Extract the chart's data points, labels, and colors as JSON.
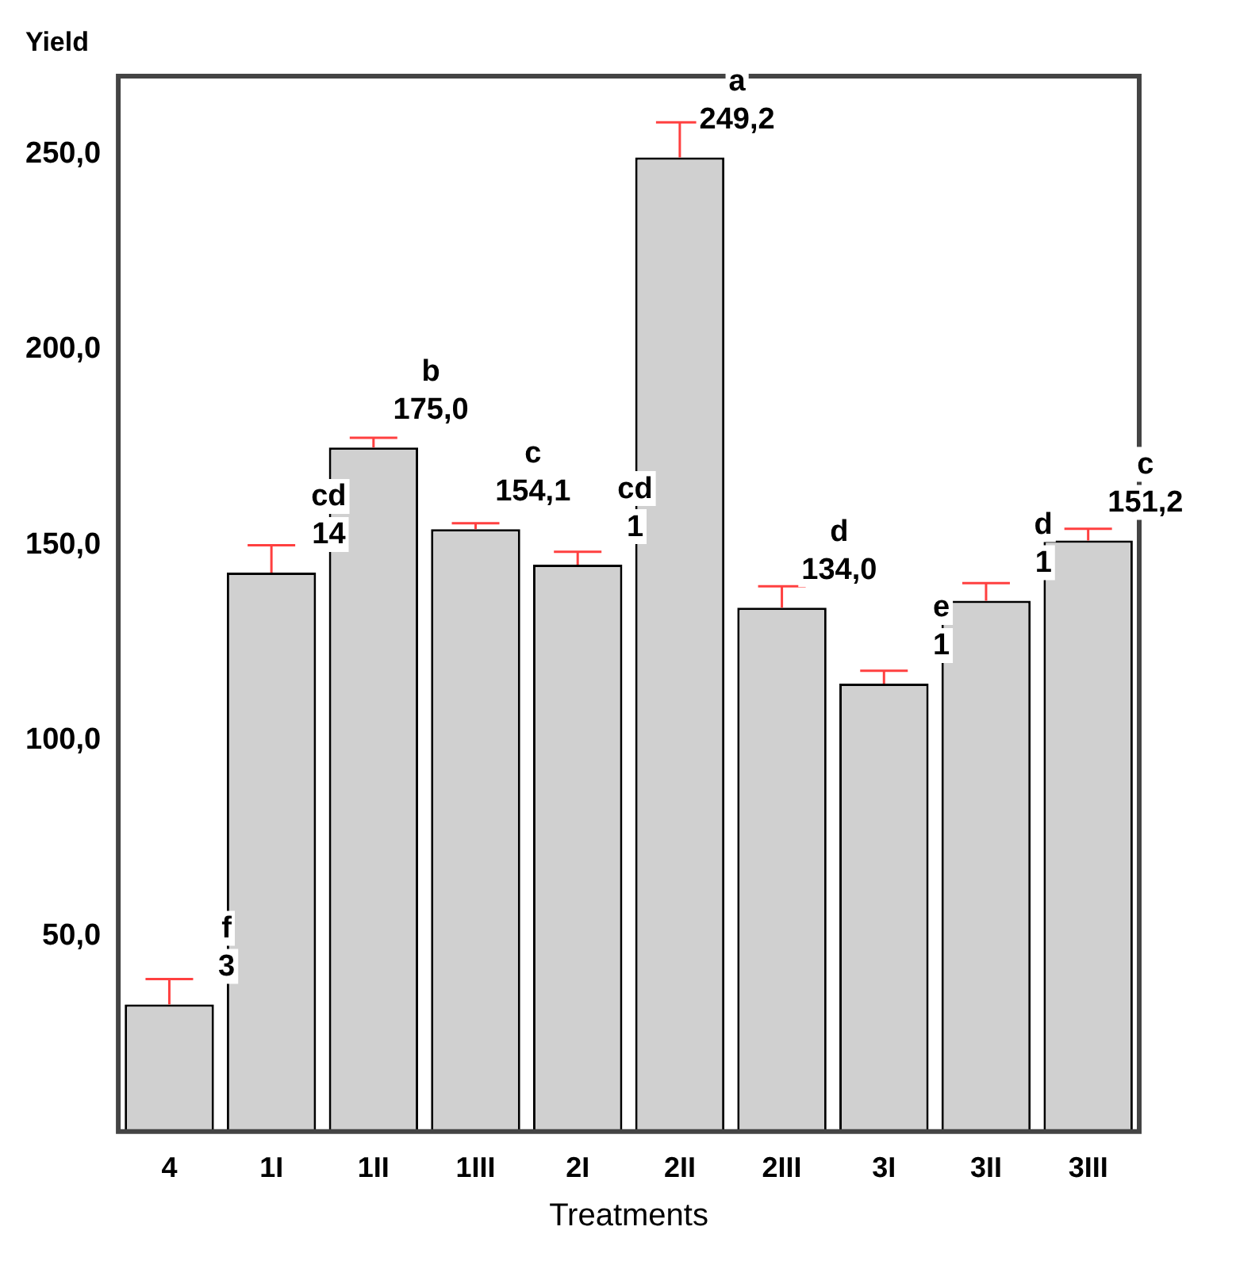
{
  "chart_data": {
    "type": "bar",
    "ylabel": "Yield",
    "xlabel": "Treatments",
    "categories": [
      "4",
      "1I",
      "1II",
      "1III",
      "2I",
      "2II",
      "2III",
      "3I",
      "3II",
      "3III"
    ],
    "values": [
      32.5,
      143,
      175,
      154.1,
      145,
      249.2,
      134,
      114.6,
      135.8,
      151.2
    ],
    "errors": [
      6.5,
      7,
      2.5,
      1.5,
      3.3,
      9,
      5.5,
      3.3,
      4.5,
      3
    ],
    "value_labels": [
      null,
      null,
      "175,0",
      "154,1",
      null,
      "249,2",
      "134,0",
      null,
      null,
      "151,2"
    ],
    "annotations": [
      {
        "text": "f",
        "x": "4",
        "y": 32.5
      },
      {
        "text": "3",
        "x": "4",
        "y": 32.5
      },
      {
        "text": "cd",
        "x": "1I",
        "y": 143
      },
      {
        "text": "14",
        "x": "1I",
        "y": 143
      },
      {
        "text": "b",
        "x": "1II",
        "y": 175
      },
      {
        "text": "c",
        "x": "1III",
        "y": 154.1
      },
      {
        "text": "cd",
        "x": "2I",
        "y": 145
      },
      {
        "text": "1",
        "x": "2I",
        "y": 145
      },
      {
        "text": "a",
        "x": "2II",
        "y": 249.2
      },
      {
        "text": "d",
        "x": "2III",
        "y": 134
      },
      {
        "text": "e",
        "x": "3I",
        "y": 114.6
      },
      {
        "text": "1",
        "x": "3I",
        "y": 114.6
      },
      {
        "text": "d",
        "x": "3II",
        "y": 135.8
      },
      {
        "text": "1",
        "x": "3II",
        "y": 135.8
      },
      {
        "text": "c",
        "x": "3III",
        "y": 151.2
      }
    ],
    "color": "#d0d0d0",
    "ylim": [
      0,
      270
    ],
    "yticks": [
      {
        "value": 50,
        "label": "50,0"
      },
      {
        "value": 100,
        "label": "100,0"
      },
      {
        "value": 150,
        "label": "150,0"
      },
      {
        "value": 200,
        "label": "200,0"
      },
      {
        "value": 250,
        "label": "250,0"
      }
    ],
    "grid": false,
    "legend": false
  }
}
